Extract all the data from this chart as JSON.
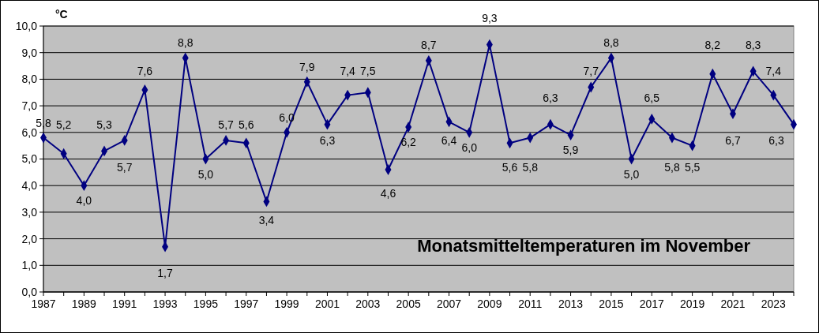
{
  "chart_data": {
    "type": "line",
    "title": "Monatsmitteltemperaturen  im November",
    "ylabel": "°C",
    "categories": [
      "1987",
      null,
      "1989",
      null,
      "1991",
      null,
      "1993",
      null,
      "1995",
      null,
      "1997",
      null,
      "1999",
      null,
      "2001",
      null,
      "2003",
      null,
      "2005",
      null,
      "2007",
      null,
      "2009",
      null,
      "2011",
      null,
      "2013",
      null,
      "2015",
      null,
      "2017",
      null,
      "2019",
      null,
      "2021",
      null,
      "2023",
      null
    ],
    "series": [
      {
        "color": "#000080",
        "values": [
          5.8,
          5.2,
          4.0,
          5.3,
          5.7,
          7.6,
          1.7,
          8.8,
          5.0,
          5.7,
          5.6,
          3.4,
          6.0,
          7.9,
          6.3,
          7.4,
          7.5,
          4.6,
          6.2,
          8.7,
          6.4,
          6.0,
          9.3,
          5.6,
          5.8,
          6.3,
          5.9,
          7.7,
          8.8,
          5.0,
          6.5,
          5.8,
          5.5,
          8.2,
          6.7,
          8.3,
          7.4,
          6.3
        ],
        "value_labels": [
          "5,8",
          "5,2",
          "4,0",
          "5,3",
          "5,7",
          "7,6",
          "1,7",
          "8,8",
          "5,0",
          "5,7",
          "5,6",
          "3,4",
          "6,0",
          "7,9",
          "6,3",
          "7,4",
          "7,5",
          "4,6",
          "6,2",
          "8,7",
          "6,4",
          "6,0",
          "9,3",
          "5,6",
          "5,8",
          "6,3",
          "5,9",
          "7,7",
          "8,8",
          "5,0",
          "6,5",
          "5,8",
          "5,5",
          "8,2",
          "6,7",
          "8,3",
          "7,4",
          "6,3"
        ]
      }
    ],
    "ylim": [
      0,
      10
    ],
    "yticks": [
      {
        "value": 0,
        "label": "0,0"
      },
      {
        "value": 1,
        "label": "1,0"
      },
      {
        "value": 2,
        "label": "2,0"
      },
      {
        "value": 3,
        "label": "3,0"
      },
      {
        "value": 4,
        "label": "4,0"
      },
      {
        "value": 5,
        "label": "5,0"
      },
      {
        "value": 6,
        "label": "6,0"
      },
      {
        "value": 7,
        "label": "7,0"
      },
      {
        "value": 8,
        "label": "8,0"
      },
      {
        "value": 9,
        "label": "9,0"
      },
      {
        "value": 10,
        "label": "10,0"
      }
    ],
    "grid": "y",
    "marker": "diamond",
    "line_style": "solid"
  }
}
